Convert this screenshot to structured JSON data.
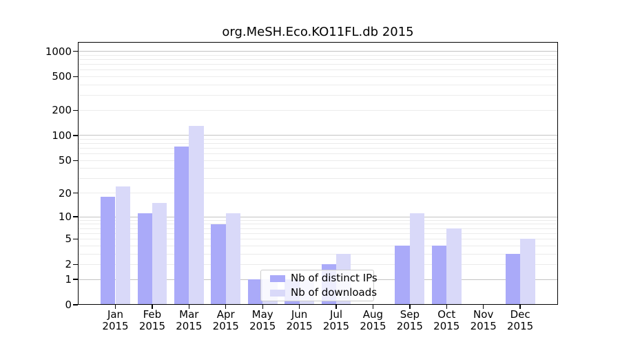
{
  "chart_data": {
    "type": "bar",
    "title": "org.MeSH.Eco.KO11FL.db 2015",
    "categories": [
      "Jan 2015",
      "Feb 2015",
      "Mar 2015",
      "Apr 2015",
      "May 2015",
      "Jun 2015",
      "Jul 2015",
      "Aug 2015",
      "Sep 2015",
      "Oct 2015",
      "Nov 2015",
      "Dec 2015"
    ],
    "x_tick_months": [
      "Jan",
      "Feb",
      "Mar",
      "Apr",
      "May",
      "Jun",
      "Jul",
      "Aug",
      "Sep",
      "Oct",
      "Nov",
      "Dec"
    ],
    "x_tick_year": "2015",
    "series": [
      {
        "name": "Nb of distinct IPs",
        "color": "#aaaaf9",
        "values": [
          18,
          11,
          74,
          8,
          1,
          1,
          2,
          0,
          4,
          4,
          0,
          3
        ]
      },
      {
        "name": "Nb of downloads",
        "color": "#d9d9f9",
        "values": [
          24,
          15,
          130,
          11,
          1,
          1,
          3,
          0,
          11,
          7,
          0,
          5
        ]
      }
    ],
    "yscale": "log1p",
    "ylabel": "",
    "xlabel": "",
    "yticks": [
      0,
      1,
      2,
      5,
      10,
      20,
      50,
      100,
      200,
      500,
      1000
    ],
    "ylim": [
      0,
      1200
    ],
    "grid": "horizontal",
    "grid_major_values": [
      1,
      10,
      100,
      1000
    ],
    "grid_minor_values": [
      2,
      3,
      4,
      5,
      6,
      7,
      8,
      9,
      20,
      30,
      40,
      50,
      60,
      70,
      80,
      90,
      200,
      300,
      400,
      500,
      600,
      700,
      800,
      900
    ],
    "legend_position": "lower-center-inside",
    "colors": {
      "bar_ips": "#aaaaf9",
      "bar_downloads": "#d9d9f9",
      "grid_major": "#c2c2c2",
      "grid_minor": "#ebebeb",
      "axis": "#000000",
      "background": "#ffffff"
    }
  }
}
